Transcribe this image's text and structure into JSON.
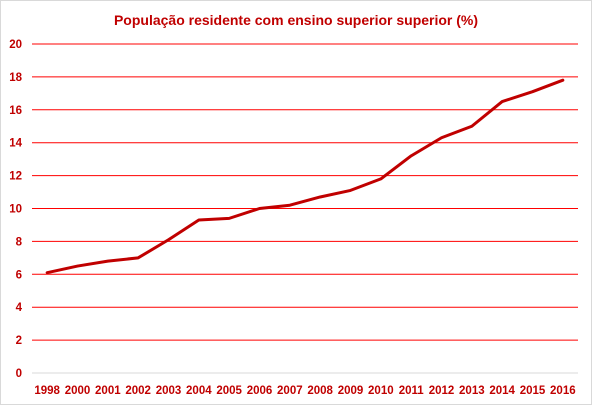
{
  "chart_data": {
    "type": "line",
    "title": "População residente com ensino superior superior (%)",
    "xlabel": "",
    "ylabel": "",
    "ylim": [
      0,
      20
    ],
    "yticks": [
      0,
      2,
      4,
      6,
      8,
      10,
      12,
      14,
      16,
      18,
      20
    ],
    "grid": true,
    "legend": "none",
    "categories": [
      "1998",
      "2000",
      "2001",
      "2002",
      "2003",
      "2004",
      "2005",
      "2006",
      "2007",
      "2008",
      "2009",
      "2010",
      "2011",
      "2012",
      "2013",
      "2014",
      "2015",
      "2016"
    ],
    "series": [
      {
        "values": [
          6.1,
          6.5,
          6.8,
          7.0,
          8.1,
          9.3,
          9.4,
          10.0,
          10.2,
          10.7,
          11.1,
          11.8,
          13.2,
          14.3,
          15.0,
          16.5,
          17.1,
          17.8
        ]
      }
    ],
    "colors": {
      "line": "#c00000",
      "grid": "#ff0000",
      "text": "#c00000"
    }
  }
}
